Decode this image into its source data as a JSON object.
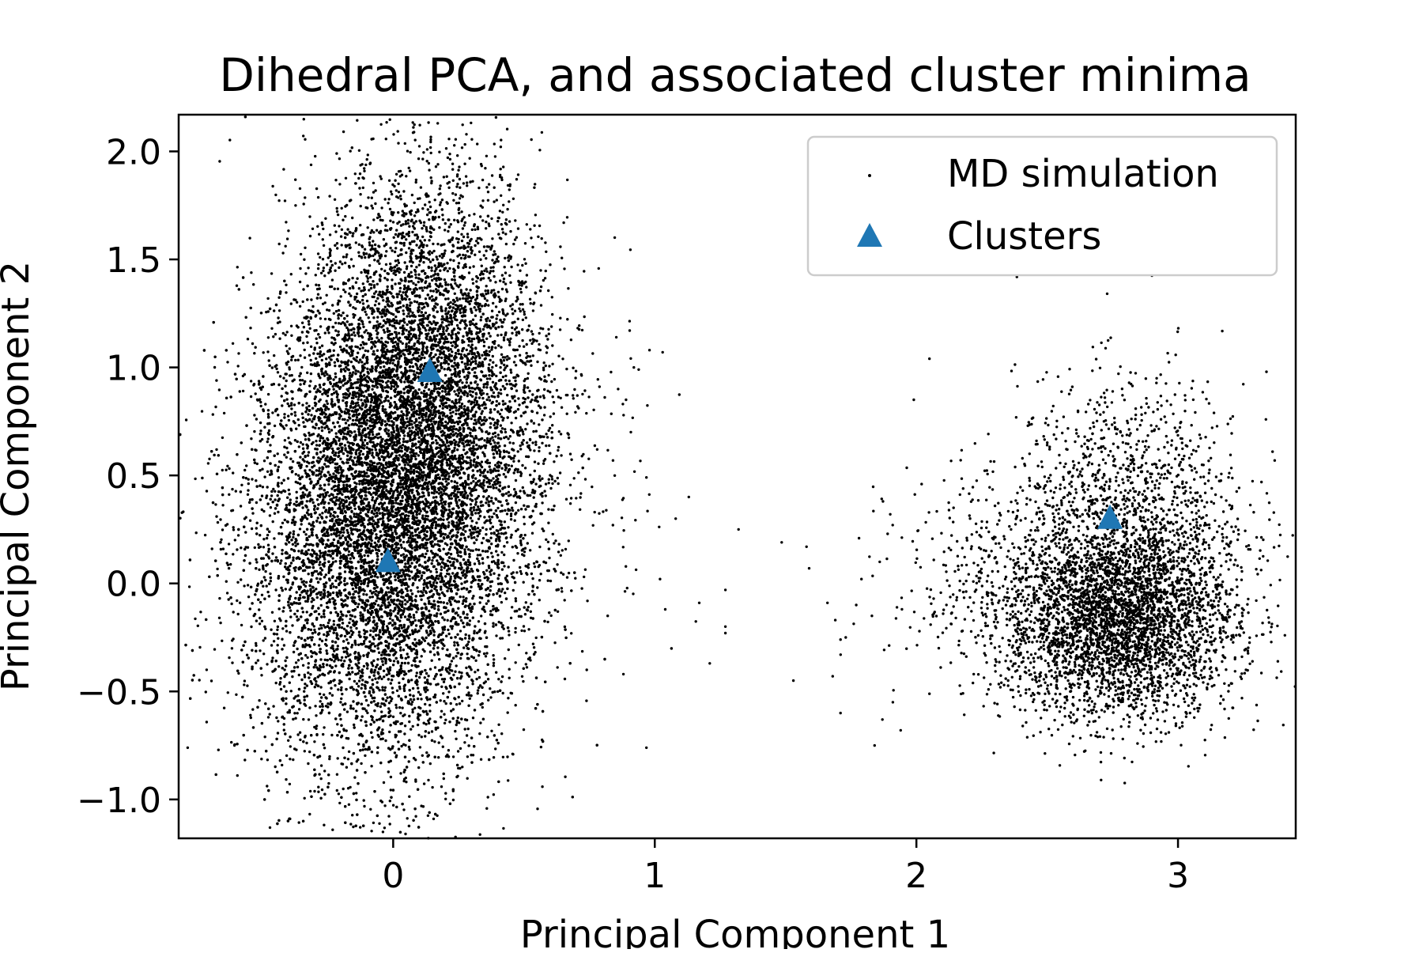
{
  "chart_data": {
    "type": "scatter",
    "title": "Dihedral PCA, and associated cluster minima",
    "xlabel": "Principal Component 1",
    "ylabel": "Principal Component 2",
    "xlim": [
      -0.82,
      3.45
    ],
    "ylim": [
      -1.18,
      2.17
    ],
    "xticks": [
      0,
      1,
      2,
      3
    ],
    "yticks": [
      2.0,
      1.5,
      1.0,
      0.5,
      0.0,
      -0.5,
      -1.0
    ],
    "xtick_labels": [
      "0",
      "1",
      "2",
      "3"
    ],
    "ytick_labels": [
      "2.0",
      "1.5",
      "1.0",
      "0.5",
      "0.0",
      "−0.5",
      "−1.0"
    ],
    "grid": false,
    "legend_position": "top-right",
    "series": [
      {
        "name": "MD simulation",
        "marker": "point",
        "color": "#000000",
        "density_regions": [
          {
            "center": [
              -0.05,
              0.2
            ],
            "spread": [
              0.26,
              0.55
            ],
            "points": 9000
          },
          {
            "center": [
              0.12,
              1.0
            ],
            "spread": [
              0.22,
              0.5
            ],
            "points": 4000
          },
          {
            "center": [
              0.2,
              0.6
            ],
            "spread": [
              0.3,
              0.45
            ],
            "points": 1200
          },
          {
            "center": [
              2.78,
              -0.18
            ],
            "spread": [
              0.22,
              0.22
            ],
            "points": 3500
          },
          {
            "center": [
              2.82,
              0.35
            ],
            "spread": [
              0.22,
              0.3
            ],
            "points": 1200
          },
          {
            "center": [
              2.4,
              0.0
            ],
            "spread": [
              0.25,
              0.28
            ],
            "points": 500
          }
        ],
        "sparse_points": [
          [
            1.03,
            1.07
          ],
          [
            0.98,
            1.08
          ],
          [
            0.92,
            1.0
          ],
          [
            0.86,
            0.9
          ],
          [
            0.89,
            0.85
          ],
          [
            1.08,
            0.3
          ],
          [
            1.13,
            0.4
          ],
          [
            1.02,
            0.02
          ],
          [
            1.04,
            -0.12
          ],
          [
            1.17,
            -0.09
          ],
          [
            1.21,
            -0.37
          ],
          [
            1.27,
            -0.2
          ],
          [
            1.27,
            -0.23
          ],
          [
            1.32,
            0.25
          ],
          [
            1.27,
            -0.03
          ],
          [
            1.58,
            0.17
          ],
          [
            1.59,
            0.07
          ],
          [
            1.53,
            -0.45
          ],
          [
            1.66,
            -0.09
          ],
          [
            1.68,
            -0.43
          ],
          [
            1.71,
            -0.6
          ],
          [
            1.69,
            -0.17
          ],
          [
            1.73,
            -0.25
          ],
          [
            1.77,
            -0.1
          ],
          [
            1.79,
            0.02
          ],
          [
            1.83,
            -0.15
          ],
          [
            1.86,
            0.1
          ],
          [
            1.9,
            0.32
          ],
          [
            1.99,
            0.85
          ],
          [
            2.05,
            1.04
          ],
          [
            2.02,
            0.46
          ],
          [
            1.87,
            -0.63
          ],
          [
            1.91,
            -0.55
          ],
          [
            1.94,
            -0.68
          ],
          [
            0.74,
            -0.4
          ],
          [
            0.82,
            -0.15
          ],
          [
            0.84,
            0.27
          ],
          [
            0.77,
            0.33
          ],
          [
            0.88,
            -0.42
          ]
        ]
      },
      {
        "name": "Clusters",
        "marker": "triangle",
        "color": "#1f77b4",
        "points": [
          [
            0.14,
            0.98
          ],
          [
            -0.02,
            0.1
          ],
          [
            2.74,
            0.3
          ]
        ]
      }
    ]
  }
}
